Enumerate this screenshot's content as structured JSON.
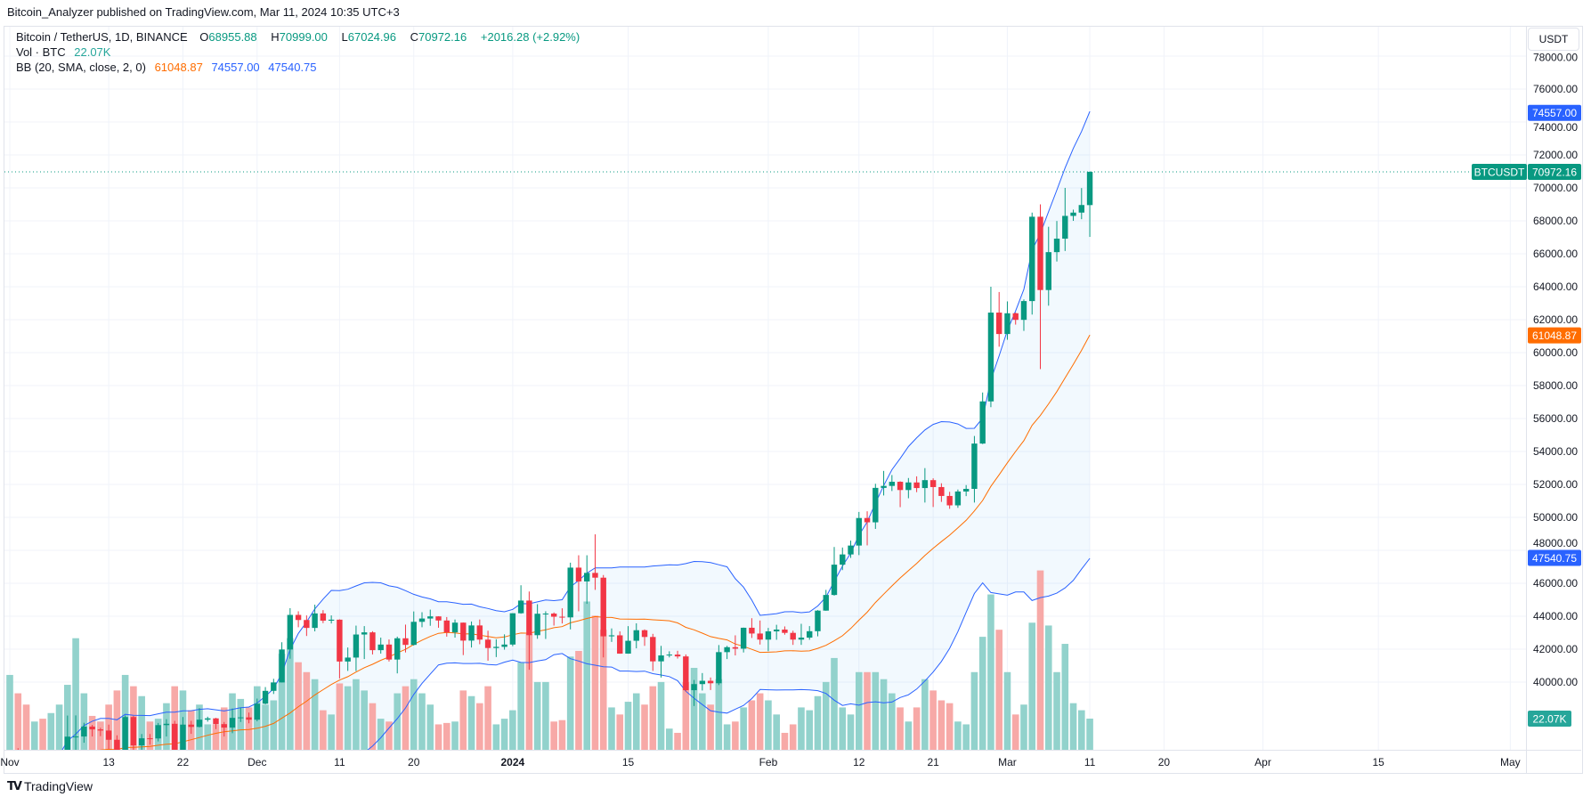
{
  "publisher_line": "Bitcoin_Analyzer published on TradingView.com, Mar 11, 2024 10:35 UTC+3",
  "legend": {
    "symbol": "Bitcoin / TetherUS, 1D, BINANCE",
    "o_label": "O",
    "o": "68955.88",
    "h_label": "H",
    "h": "70999.00",
    "l_label": "L",
    "l": "67024.96",
    "c_label": "C",
    "c": "70972.16",
    "change": "+2016.28 (+2.92%)",
    "vol_label": "Vol · BTC",
    "vol": "22.07K",
    "bb_label": "BB (20, SMA, close, 2, 0)",
    "bb_basis": "61048.87",
    "bb_upper": "74557.00",
    "bb_lower": "47540.75"
  },
  "currency_button": "USDT",
  "price_tags": {
    "symbol": "BTCUSDT",
    "last": "70972.16",
    "upper": "74557.00",
    "basis": "61048.87",
    "lower": "47540.75",
    "volume": "22.07K"
  },
  "footer_logo": "TradingView",
  "colors": {
    "up": "#089981",
    "down": "#f23645",
    "bb_band": "#2962ff",
    "bb_basis": "#ff6d00",
    "vol_up": "#92d2cc",
    "vol_down": "#f7a9a7"
  },
  "chart_data": {
    "type": "candlestick",
    "title": "Bitcoin / TetherUS, 1D, BINANCE",
    "ylim": [
      34000,
      78000
    ],
    "y_ticks": [
      "40000.00",
      "42000.00",
      "44000.00",
      "46000.00",
      "48000.00",
      "50000.00",
      "52000.00",
      "54000.00",
      "56000.00",
      "58000.00",
      "60000.00",
      "62000.00",
      "64000.00",
      "66000.00",
      "68000.00",
      "70000.00",
      "72000.00",
      "74000.00",
      "76000.00",
      "78000.00"
    ],
    "x_ticks": [
      {
        "label": "Nov",
        "date": "2023-11-01"
      },
      {
        "label": "13",
        "date": "2023-11-13"
      },
      {
        "label": "22",
        "date": "2023-11-22"
      },
      {
        "label": "Dec",
        "date": "2023-12-01"
      },
      {
        "label": "11",
        "date": "2023-12-11"
      },
      {
        "label": "20",
        "date": "2023-12-20"
      },
      {
        "label": "2024",
        "date": "2024-01-01",
        "bold": true
      },
      {
        "label": "15",
        "date": "2024-01-15"
      },
      {
        "label": "Feb",
        "date": "2024-02-01"
      },
      {
        "label": "12",
        "date": "2024-02-12"
      },
      {
        "label": "21",
        "date": "2024-02-21"
      },
      {
        "label": "Mar",
        "date": "2024-03-01"
      },
      {
        "label": "11",
        "date": "2024-03-11"
      },
      {
        "label": "20",
        "date": "2024-03-20"
      },
      {
        "label": "Apr",
        "date": "2024-04-01"
      },
      {
        "label": "15",
        "date": "2024-04-15"
      },
      {
        "label": "May",
        "date": "2024-05-01"
      }
    ],
    "grid": true,
    "start_date": "2023-11-01",
    "columns": [
      "open",
      "high",
      "low",
      "close",
      "volume_k"
    ],
    "ohlcv": [
      [
        34640,
        35580,
        34125,
        35420,
        53
      ],
      [
        35420,
        35984,
        34300,
        34940,
        40
      ],
      [
        34940,
        34940,
        34100,
        34720,
        32
      ],
      [
        34720,
        35260,
        34525,
        35080,
        20
      ],
      [
        35080,
        35380,
        34540,
        35030,
        22
      ],
      [
        35030,
        35290,
        34740,
        35050,
        26
      ],
      [
        35050,
        35890,
        34850,
        35420,
        32
      ],
      [
        35420,
        37970,
        35360,
        36690,
        46
      ],
      [
        36690,
        37980,
        35550,
        36700,
        79
      ],
      [
        36700,
        37530,
        36320,
        37300,
        40
      ],
      [
        37300,
        37400,
        36700,
        37130,
        24
      ],
      [
        37130,
        37230,
        36720,
        37060,
        20
      ],
      [
        37060,
        37420,
        35950,
        36500,
        32
      ],
      [
        36500,
        36770,
        34800,
        35540,
        42
      ],
      [
        35540,
        37980,
        35360,
        37880,
        53
      ],
      [
        37880,
        37950,
        35500,
        36160,
        45
      ],
      [
        36160,
        36850,
        35860,
        36590,
        38
      ],
      [
        36590,
        36850,
        36200,
        36580,
        20
      ],
      [
        36580,
        37520,
        36400,
        37390,
        22
      ],
      [
        37390,
        37750,
        36700,
        37470,
        33
      ],
      [
        37470,
        37650,
        35750,
        35810,
        45
      ],
      [
        35810,
        37880,
        35630,
        37420,
        42
      ],
      [
        37420,
        37650,
        36860,
        37280,
        28
      ],
      [
        37280,
        38420,
        37250,
        37720,
        32
      ],
      [
        37720,
        37900,
        37600,
        37800,
        18
      ],
      [
        37800,
        37830,
        37150,
        37450,
        18
      ],
      [
        37450,
        37580,
        36700,
        37240,
        30
      ],
      [
        37240,
        38400,
        36900,
        37830,
        40
      ],
      [
        37830,
        38450,
        37580,
        37860,
        36
      ],
      [
        37860,
        38150,
        37500,
        37720,
        30
      ],
      [
        37720,
        38999,
        37620,
        38690,
        45
      ],
      [
        38690,
        39700,
        38650,
        39470,
        32
      ],
      [
        39470,
        40200,
        39280,
        39980,
        35
      ],
      [
        39980,
        42420,
        39980,
        41980,
        68
      ],
      [
        41980,
        44490,
        41420,
        44080,
        79
      ],
      [
        44080,
        44300,
        43330,
        43770,
        62
      ],
      [
        43770,
        44050,
        42800,
        43290,
        55
      ],
      [
        43290,
        44700,
        43080,
        44170,
        50
      ],
      [
        44170,
        44370,
        43580,
        43730,
        28
      ],
      [
        43730,
        44050,
        43560,
        43790,
        25
      ],
      [
        43790,
        43810,
        40220,
        41250,
        47
      ],
      [
        41250,
        42100,
        40680,
        41490,
        45
      ],
      [
        41490,
        43430,
        40670,
        42890,
        50
      ],
      [
        42890,
        43400,
        41400,
        43020,
        42
      ],
      [
        43020,
        43090,
        41680,
        41940,
        33
      ],
      [
        41940,
        42700,
        41730,
        42280,
        22
      ],
      [
        42280,
        42590,
        41250,
        41370,
        20
      ],
      [
        41370,
        42760,
        40530,
        42660,
        40
      ],
      [
        42660,
        43490,
        41800,
        42260,
        45
      ],
      [
        42260,
        44290,
        42220,
        43660,
        50
      ],
      [
        43660,
        44240,
        43330,
        43860,
        40
      ],
      [
        43860,
        44400,
        43420,
        43990,
        32
      ],
      [
        43990,
        44000,
        43300,
        43740,
        18
      ],
      [
        43740,
        43950,
        42760,
        43020,
        19
      ],
      [
        43020,
        43800,
        42700,
        43610,
        20
      ],
      [
        43610,
        43620,
        41640,
        42520,
        42
      ],
      [
        42520,
        43680,
        42100,
        43440,
        38
      ],
      [
        43440,
        43800,
        42300,
        42580,
        33
      ],
      [
        42580,
        43120,
        41300,
        42070,
        45
      ],
      [
        42070,
        42600,
        41520,
        42140,
        18
      ],
      [
        42140,
        42900,
        41970,
        42280,
        22
      ],
      [
        42280,
        44180,
        42180,
        44180,
        28
      ],
      [
        44180,
        45880,
        44150,
        44950,
        62
      ],
      [
        44950,
        45500,
        40750,
        42850,
        82
      ],
      [
        42850,
        44730,
        42630,
        44150,
        48
      ],
      [
        44150,
        44300,
        42620,
        44160,
        48
      ],
      [
        44160,
        44230,
        43430,
        43970,
        20
      ],
      [
        43970,
        44480,
        43560,
        43930,
        21
      ],
      [
        43930,
        47250,
        43200,
        46950,
        66
      ],
      [
        46950,
        47700,
        44300,
        46110,
        70
      ],
      [
        46110,
        47700,
        44750,
        46630,
        105
      ],
      [
        46630,
        48970,
        45600,
        46340,
        95
      ],
      [
        46340,
        46500,
        41500,
        42780,
        85
      ],
      [
        42780,
        43260,
        42440,
        42840,
        30
      ],
      [
        42840,
        43080,
        41720,
        41730,
        25
      ],
      [
        41730,
        43400,
        41720,
        42510,
        34
      ],
      [
        42510,
        43570,
        42050,
        43150,
        40
      ],
      [
        43150,
        43200,
        42200,
        42740,
        32
      ],
      [
        42740,
        42930,
        40680,
        41260,
        45
      ],
      [
        41260,
        42200,
        40280,
        41620,
        48
      ],
      [
        41620,
        41870,
        41500,
        41670,
        15
      ],
      [
        41670,
        41900,
        41430,
        41560,
        12
      ],
      [
        41560,
        41680,
        39430,
        39510,
        48
      ],
      [
        39510,
        40130,
        38550,
        39880,
        58
      ],
      [
        39880,
        40550,
        39490,
        40080,
        40
      ],
      [
        40080,
        40280,
        39520,
        39930,
        32
      ],
      [
        39930,
        42250,
        39820,
        41820,
        50
      ],
      [
        41820,
        42200,
        41400,
        42120,
        18
      ],
      [
        42120,
        42840,
        41620,
        42030,
        20
      ],
      [
        42030,
        43310,
        41800,
        43300,
        30
      ],
      [
        43300,
        43880,
        42680,
        42950,
        35
      ],
      [
        42950,
        43740,
        42280,
        42580,
        40
      ],
      [
        42580,
        43290,
        41880,
        43080,
        35
      ],
      [
        43080,
        43480,
        42570,
        43190,
        25
      ],
      [
        43190,
        43380,
        42880,
        42990,
        12
      ],
      [
        42990,
        43120,
        42260,
        42580,
        18
      ],
      [
        42580,
        43540,
        42260,
        42700,
        30
      ],
      [
        42700,
        43400,
        42570,
        43090,
        28
      ],
      [
        43090,
        44370,
        42780,
        44340,
        38
      ],
      [
        44340,
        45600,
        44330,
        45290,
        48
      ],
      [
        45290,
        48200,
        45250,
        47130,
        65
      ],
      [
        47130,
        48170,
        46800,
        47750,
        30
      ],
      [
        47750,
        48590,
        47540,
        48290,
        25
      ],
      [
        48290,
        50330,
        47710,
        49960,
        55
      ],
      [
        49960,
        50370,
        48300,
        49700,
        55
      ],
      [
        49700,
        52040,
        49300,
        51790,
        55
      ],
      [
        51790,
        52820,
        51330,
        51910,
        50
      ],
      [
        51910,
        52570,
        51600,
        52160,
        40
      ],
      [
        52160,
        52190,
        50620,
        51660,
        30
      ],
      [
        51660,
        52390,
        51160,
        52120,
        20
      ],
      [
        52120,
        52490,
        51530,
        51780,
        30
      ],
      [
        51780,
        52990,
        50900,
        52260,
        50
      ],
      [
        52260,
        52370,
        50630,
        51840,
        42
      ],
      [
        51840,
        52070,
        50940,
        51300,
        35
      ],
      [
        51300,
        51550,
        50520,
        50730,
        33
      ],
      [
        50730,
        51690,
        50580,
        51570,
        20
      ],
      [
        51570,
        51960,
        51290,
        51730,
        18
      ],
      [
        51730,
        54940,
        50900,
        54480,
        55
      ],
      [
        54480,
        57580,
        54450,
        57040,
        80
      ],
      [
        57040,
        64000,
        56690,
        62430,
        110
      ],
      [
        62430,
        63680,
        60360,
        61130,
        85
      ],
      [
        61130,
        63110,
        60780,
        62390,
        55
      ],
      [
        62390,
        62430,
        61700,
        61990,
        25
      ],
      [
        61990,
        63230,
        61320,
        63130,
        32
      ],
      [
        63130,
        68500,
        62310,
        68250,
        90
      ],
      [
        68250,
        69000,
        59000,
        63800,
        127
      ],
      [
        63800,
        67640,
        62850,
        66100,
        88
      ],
      [
        66100,
        67990,
        65530,
        66920,
        55
      ],
      [
        66920,
        70000,
        66170,
        68300,
        75
      ],
      [
        68300,
        68680,
        68000,
        68500,
        33
      ],
      [
        68500,
        69990,
        68100,
        68960,
        28
      ],
      [
        68955.88,
        70999.0,
        67024.96,
        70972.16,
        22.07
      ]
    ],
    "indicator": {
      "name": "BB",
      "length": 20,
      "source": "close",
      "mult": 2,
      "offset": 0,
      "last_basis": 61048.87,
      "last_upper": 74557.0,
      "last_lower": 47540.75
    }
  }
}
